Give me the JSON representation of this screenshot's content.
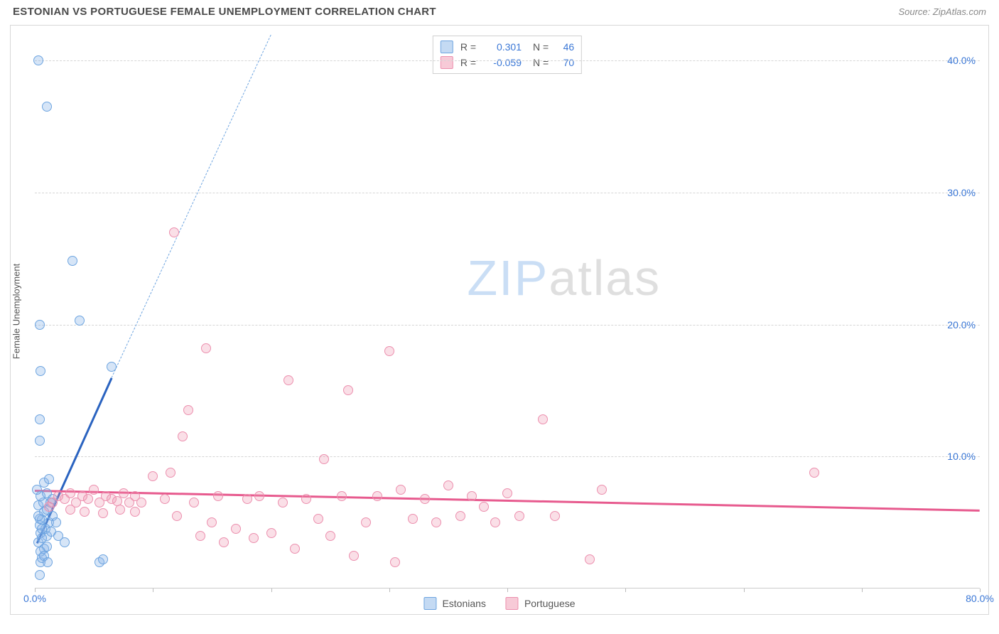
{
  "title": "ESTONIAN VS PORTUGUESE FEMALE UNEMPLOYMENT CORRELATION CHART",
  "source": "Source: ZipAtlas.com",
  "y_label": "Female Unemployment",
  "watermark_bold": "ZIP",
  "watermark_rest": "atlas",
  "chart": {
    "type": "scatter",
    "background_color": "#ffffff",
    "grid_color": "#d5d5d5",
    "axis_color": "#cccccc",
    "text_color": "#555555",
    "value_color": "#3a77d6",
    "xlim": [
      0,
      80
    ],
    "ylim": [
      0,
      42
    ],
    "xticks": [
      0,
      10,
      20,
      30,
      40,
      50,
      60,
      70,
      80
    ],
    "xtick_labels": {
      "0": "0.0%",
      "80": "80.0%"
    },
    "yticks": [
      10,
      20,
      30,
      40
    ],
    "ytick_labels": [
      "10.0%",
      "20.0%",
      "30.0%",
      "40.0%"
    ],
    "point_radius": 7,
    "series": [
      {
        "name": "Estonians",
        "fill_color": "rgba(137,181,232,0.35)",
        "stroke_color": "#6da4e0",
        "legend_swatch_fill": "rgba(137,181,232,0.5)",
        "R": "0.301",
        "N": "46",
        "trend": {
          "x1": 0.2,
          "y1": 3.5,
          "x2": 6.5,
          "y2": 16.0,
          "color": "#2a63c0",
          "width": 2.5,
          "style": "solid"
        },
        "trend_ext": {
          "x1": 6.5,
          "y1": 16.0,
          "x2": 20,
          "y2": 42.0,
          "color": "#6da4e0",
          "width": 1.2,
          "style": "dashed"
        },
        "points": [
          [
            0.4,
            1.0
          ],
          [
            0.5,
            2.0
          ],
          [
            0.6,
            2.3
          ],
          [
            0.8,
            3.0
          ],
          [
            0.3,
            3.5
          ],
          [
            1.0,
            4.0
          ],
          [
            0.5,
            4.2
          ],
          [
            0.4,
            4.8
          ],
          [
            1.2,
            5.0
          ],
          [
            0.6,
            5.2
          ],
          [
            1.5,
            5.5
          ],
          [
            0.8,
            5.8
          ],
          [
            1.0,
            6.0
          ],
          [
            0.3,
            6.3
          ],
          [
            0.7,
            6.5
          ],
          [
            1.3,
            6.5
          ],
          [
            0.5,
            7.0
          ],
          [
            1.0,
            7.2
          ],
          [
            0.2,
            7.5
          ],
          [
            0.8,
            8.0
          ],
          [
            1.2,
            8.3
          ],
          [
            0.4,
            5.3
          ],
          [
            0.9,
            4.5
          ],
          [
            1.4,
            4.3
          ],
          [
            0.6,
            3.8
          ],
          [
            1.0,
            3.2
          ],
          [
            0.5,
            2.8
          ],
          [
            0.8,
            2.5
          ],
          [
            1.1,
            2.0
          ],
          [
            5.5,
            2.0
          ],
          [
            5.8,
            2.2
          ],
          [
            2.5,
            3.5
          ],
          [
            2.0,
            4.0
          ],
          [
            0.4,
            11.2
          ],
          [
            0.4,
            12.8
          ],
          [
            0.5,
            16.5
          ],
          [
            6.5,
            16.8
          ],
          [
            0.4,
            20.0
          ],
          [
            3.8,
            20.3
          ],
          [
            3.2,
            24.8
          ],
          [
            1.0,
            36.5
          ],
          [
            0.3,
            40.0
          ],
          [
            1.5,
            6.8
          ],
          [
            0.6,
            4.5
          ],
          [
            1.8,
            5.0
          ],
          [
            0.3,
            5.5
          ]
        ]
      },
      {
        "name": "Portuguese",
        "fill_color": "rgba(240,150,175,0.30)",
        "stroke_color": "#ec8fae",
        "legend_swatch_fill": "rgba(240,150,175,0.5)",
        "R": "-0.059",
        "N": "70",
        "trend": {
          "x1": 0,
          "y1": 7.5,
          "x2": 80,
          "y2": 6.0,
          "color": "#e75a8e",
          "width": 2.5,
          "style": "solid"
        },
        "points": [
          [
            1.5,
            6.5
          ],
          [
            2.0,
            7.0
          ],
          [
            2.5,
            6.8
          ],
          [
            3.0,
            7.2
          ],
          [
            3.5,
            6.5
          ],
          [
            4.0,
            7.0
          ],
          [
            4.5,
            6.8
          ],
          [
            5.0,
            7.5
          ],
          [
            5.5,
            6.5
          ],
          [
            6.0,
            7.0
          ],
          [
            6.5,
            6.8
          ],
          [
            7.0,
            6.6
          ],
          [
            7.5,
            7.2
          ],
          [
            8.0,
            6.5
          ],
          [
            8.5,
            7.0
          ],
          [
            9.0,
            6.5
          ],
          [
            10.0,
            8.5
          ],
          [
            11.0,
            6.8
          ],
          [
            11.5,
            8.8
          ],
          [
            12.0,
            5.5
          ],
          [
            12.5,
            11.5
          ],
          [
            13.0,
            13.5
          ],
          [
            13.5,
            6.5
          ],
          [
            14.0,
            4.0
          ],
          [
            14.5,
            18.2
          ],
          [
            15.0,
            5.0
          ],
          [
            15.5,
            7.0
          ],
          [
            16.0,
            3.5
          ],
          [
            17.0,
            4.5
          ],
          [
            18.0,
            6.8
          ],
          [
            18.5,
            3.8
          ],
          [
            19.0,
            7.0
          ],
          [
            20.0,
            4.2
          ],
          [
            21.0,
            6.5
          ],
          [
            21.5,
            15.8
          ],
          [
            22.0,
            3.0
          ],
          [
            23.0,
            6.8
          ],
          [
            24.0,
            5.3
          ],
          [
            24.5,
            9.8
          ],
          [
            25.0,
            4.0
          ],
          [
            26.0,
            7.0
          ],
          [
            26.5,
            15.0
          ],
          [
            27.0,
            2.5
          ],
          [
            28.0,
            5.0
          ],
          [
            29.0,
            7.0
          ],
          [
            30.0,
            18.0
          ],
          [
            30.5,
            2.0
          ],
          [
            31.0,
            7.5
          ],
          [
            32.0,
            5.3
          ],
          [
            33.0,
            6.8
          ],
          [
            34.0,
            5.0
          ],
          [
            35.0,
            7.8
          ],
          [
            36.0,
            5.5
          ],
          [
            37.0,
            7.0
          ],
          [
            38.0,
            6.2
          ],
          [
            39.0,
            5.0
          ],
          [
            40.0,
            7.2
          ],
          [
            41.0,
            5.5
          ],
          [
            43.0,
            12.8
          ],
          [
            44.0,
            5.5
          ],
          [
            47.0,
            2.2
          ],
          [
            48.0,
            7.5
          ],
          [
            11.8,
            27.0
          ],
          [
            66.0,
            8.8
          ],
          [
            3.0,
            6.0
          ],
          [
            4.2,
            5.8
          ],
          [
            5.8,
            5.7
          ],
          [
            7.2,
            6.0
          ],
          [
            8.5,
            5.8
          ],
          [
            1.2,
            6.2
          ]
        ]
      }
    ]
  },
  "legend_top_labels": {
    "R": "R =",
    "N": "N ="
  }
}
